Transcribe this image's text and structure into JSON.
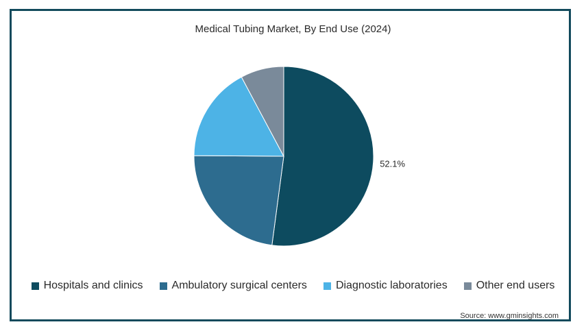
{
  "chart_data": {
    "type": "pie",
    "title": "Medical Tubing Market, By End Use (2024)",
    "slices": [
      {
        "label": "Hospitals and clinics",
        "value": 52.1,
        "color": "#0d4b5f",
        "data_label": "52.1%"
      },
      {
        "label": "Ambulatory surgical centers",
        "value": 23.0,
        "color": "#2d6c8f",
        "data_label": ""
      },
      {
        "label": "Diagnostic laboratories",
        "value": 17.1,
        "color": "#4db3e6",
        "data_label": ""
      },
      {
        "label": "Other end users",
        "value": 7.8,
        "color": "#7a8a9a",
        "data_label": ""
      }
    ],
    "legend_position": "bottom",
    "start_angle": "12 o'clock",
    "direction": "clockwise"
  },
  "source": "Source: www.gminsights.com"
}
